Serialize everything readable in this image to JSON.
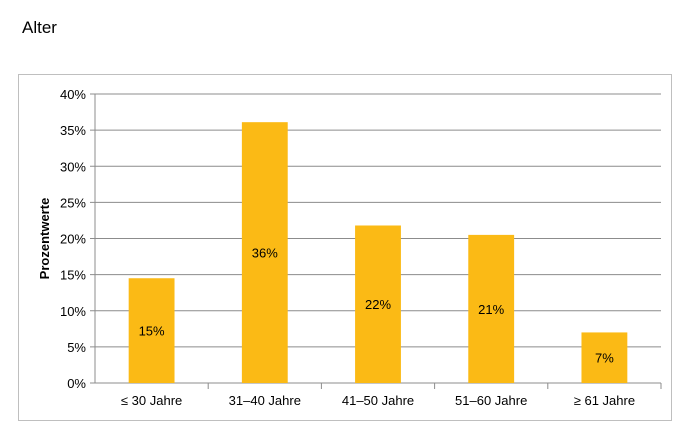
{
  "page": {
    "heading": "Alter"
  },
  "chart_data": {
    "type": "bar",
    "title": "",
    "xlabel": "",
    "ylabel": "Prozentwerte",
    "categories": [
      "≤ 30 Jahre",
      "31–40 Jahre",
      "41–50 Jahre",
      "51–60 Jahre",
      "≥ 61 Jahre"
    ],
    "values": [
      14.5,
      36.1,
      21.8,
      20.5,
      7.0
    ],
    "data_labels": [
      "15%",
      "36%",
      "22%",
      "21%",
      "7%"
    ],
    "ylim": [
      0,
      40
    ],
    "yticks": [
      0,
      5,
      10,
      15,
      20,
      25,
      30,
      35,
      40
    ],
    "ytick_format": "%",
    "grid": true,
    "legend": "none",
    "bar_color": "#FBBA15",
    "grid_color": "#8c8c8c"
  }
}
